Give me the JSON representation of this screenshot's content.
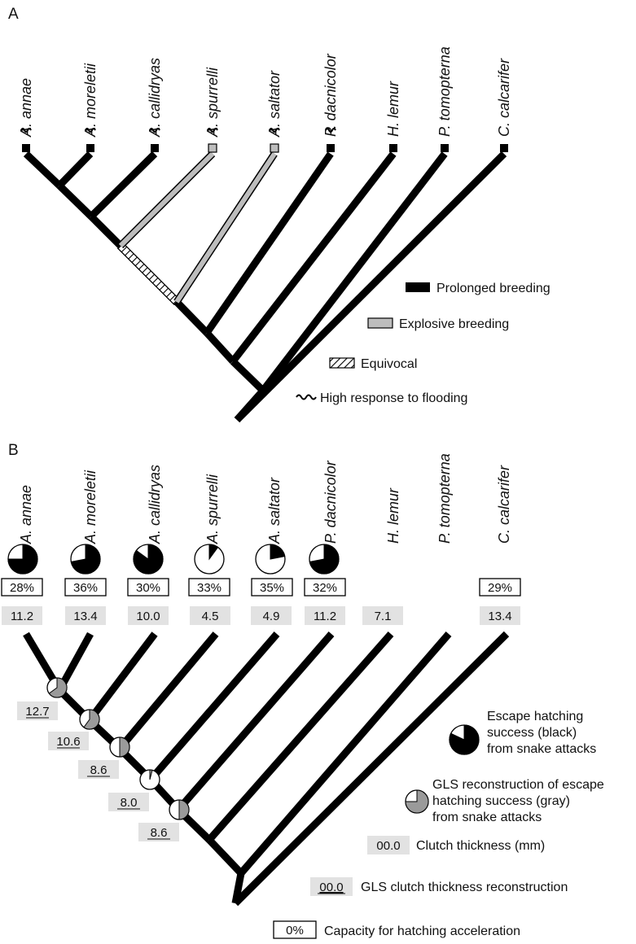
{
  "figure": {
    "panel_a_label": "A",
    "panel_b_label": "B"
  },
  "taxa": [
    {
      "name": "A. annae",
      "breeding": "prolonged",
      "flooding": true,
      "escape": 28,
      "clutch": "11.2"
    },
    {
      "name": "A. moreletii",
      "breeding": "prolonged",
      "flooding": true,
      "escape": 36,
      "clutch": "13.4"
    },
    {
      "name": "A. callidryas",
      "breeding": "prolonged",
      "flooding": true,
      "escape": 30,
      "clutch": "10.0"
    },
    {
      "name": "A. spurrelli",
      "breeding": "explosive",
      "flooding": true,
      "escape": 33,
      "clutch": "4.5"
    },
    {
      "name": "A. saltator",
      "breeding": "explosive",
      "flooding": true,
      "escape": 35,
      "clutch": "4.9"
    },
    {
      "name": "P. dacnicolor",
      "breeding": "prolonged",
      "flooding": true,
      "escape": 32,
      "clutch": "11.2"
    },
    {
      "name": "H. lemur",
      "breeding": "prolonged",
      "flooding": false,
      "escape": null,
      "clutch": "7.1"
    },
    {
      "name": "P. tomopterna",
      "breeding": "prolonged",
      "flooding": false,
      "escape": null,
      "clutch": null
    },
    {
      "name": "C. calcarifer",
      "breeding": "prolonged",
      "flooding": false,
      "escape": 29,
      "clutch": "13.4"
    }
  ],
  "panel_b": {
    "pie_escape_fraction": [
      0.75,
      0.72,
      0.85,
      0.1,
      0.22,
      0.72
    ],
    "capacity_boxes": [
      "28%",
      "36%",
      "30%",
      "33%",
      "35%",
      "32%",
      null,
      null,
      "29%"
    ],
    "node_reconstructions": [
      {
        "value": "12.7",
        "gls_gray_fraction": 0.65
      },
      {
        "value": "10.6",
        "gls_gray_fraction": 0.6
      },
      {
        "value": "8.6",
        "gls_gray_fraction": 0.5
      },
      {
        "value": "8.0",
        "gls_gray_fraction": 0.04
      },
      {
        "value": "8.6",
        "gls_gray_fraction": 0.5
      }
    ]
  },
  "legend_a": {
    "prolonged": "Prolonged breeding",
    "explosive": "Explosive breeding",
    "equivocal": "Equivocal",
    "flooding": "High response to flooding"
  },
  "legend_b": {
    "escape_line1": "Escape hatching",
    "escape_line2": "success (black)",
    "escape_line3": "from snake attacks",
    "gls_line1": "GLS reconstruction of escape",
    "gls_line2": "hatching success (gray)",
    "gls_line3": "from snake attacks",
    "clutch_sample": "00.0",
    "clutch_label": "Clutch thickness (mm)",
    "gls_clutch_sample": "00.0",
    "gls_clutch_label": "GLS clutch thickness reconstruction",
    "capacity_sample": "0%",
    "capacity_label": "Capacity for hatching acceleration"
  },
  "colors": {
    "black": "#000000",
    "explosive_fill": "#bdbdbd",
    "gls_gray": "#9a9a9a",
    "value_box": "#e2e2e2"
  }
}
